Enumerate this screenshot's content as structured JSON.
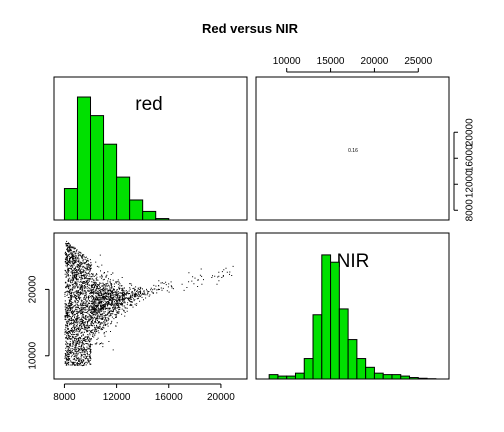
{
  "title": "Red versus NIR",
  "chart_data": {
    "type": "scatter",
    "title": "Red versus NIR",
    "variables": [
      "red",
      "NIR"
    ],
    "correlation_label": "0.16",
    "axes": {
      "red": {
        "range": [
          7200,
          22000
        ],
        "ticks": [
          8000,
          12000,
          16000,
          20000
        ]
      },
      "NIR": {
        "range": [
          6500,
          28500
        ],
        "ticks": [
          10000,
          15000,
          20000,
          25000
        ],
        "right_ticks": [
          8000,
          12000,
          16000,
          20000
        ],
        "left_ticks": [
          10000,
          20000
        ]
      }
    },
    "histograms": {
      "red": {
        "breaks": [
          8000,
          9000,
          10000,
          11000,
          12000,
          13000,
          14000,
          15000,
          16000
        ],
        "relative_heights": [
          0.22,
          0.86,
          0.73,
          0.53,
          0.3,
          0.14,
          0.06,
          0.01
        ]
      },
      "NIR": {
        "breaks": [
          8000,
          9000,
          10000,
          11000,
          12000,
          13000,
          14000,
          15000,
          16000,
          17000,
          18000,
          19000,
          20000,
          21000,
          22000,
          23000,
          24000,
          25000,
          26000,
          27000
        ],
        "relative_heights": [
          0.03,
          0.02,
          0.02,
          0.04,
          0.14,
          0.44,
          0.85,
          0.8,
          0.48,
          0.27,
          0.14,
          0.08,
          0.04,
          0.03,
          0.03,
          0.02,
          0.01,
          0.005,
          0.002
        ]
      }
    },
    "scatter_shape": {
      "description_points": [
        [
          8000,
          9000
        ],
        [
          8600,
          9200
        ],
        [
          9000,
          8600
        ],
        [
          9500,
          27000
        ],
        [
          10000,
          12500
        ],
        [
          12000,
          16500
        ],
        [
          14000,
          18500
        ],
        [
          16000,
          20500
        ],
        [
          18000,
          21800
        ],
        [
          20000,
          22800
        ],
        [
          21000,
          23700
        ]
      ]
    },
    "colors": {
      "bars": "#00e000",
      "points": "#000000",
      "frame": "#000000"
    }
  }
}
